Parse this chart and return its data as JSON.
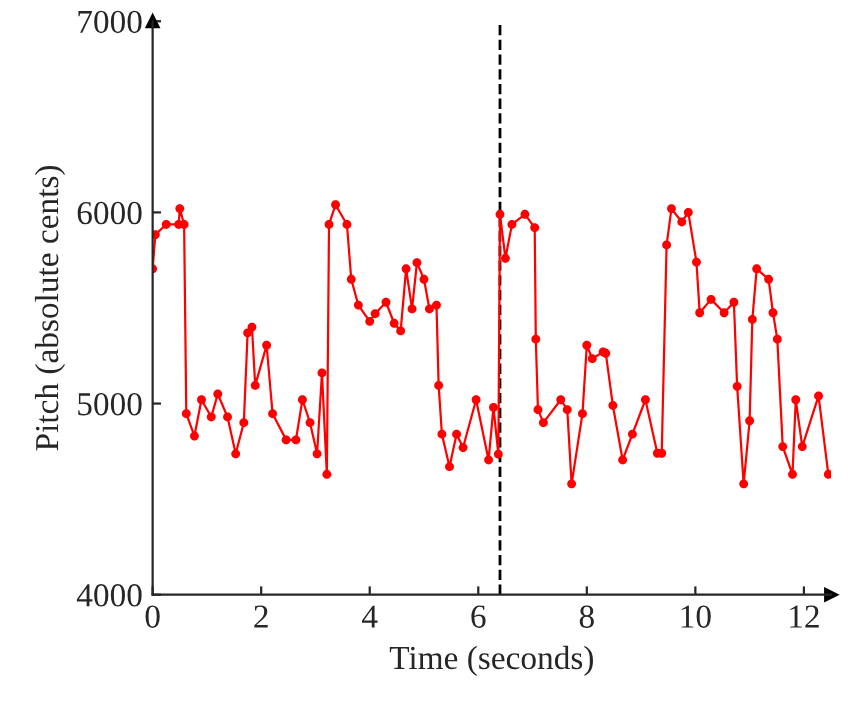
{
  "chart_data": {
    "type": "line",
    "xlabel": "Time (seconds)",
    "ylabel": "Pitch (absolute cents)",
    "xlim": [
      0,
      12.5
    ],
    "ylim": [
      4000,
      7000
    ],
    "xticks": [
      0,
      2,
      4,
      6,
      8,
      10,
      12
    ],
    "yticks": [
      4000,
      5000,
      6000,
      7000
    ],
    "marker": "circle",
    "line_style": "solid",
    "grid": false,
    "legend": false,
    "ref_lines": [
      {
        "axis": "x",
        "value": 6.4,
        "label": null,
        "color": "#000000",
        "line_style": "dashed"
      }
    ],
    "series": [
      {
        "color": "#ff0000",
        "x": [
          0,
          0.05,
          0.25,
          0.48,
          0.5,
          0.58,
          0.62,
          0.77,
          0.9,
          1.08,
          1.2,
          1.38,
          1.53,
          1.68,
          1.75,
          1.83,
          1.89,
          2.1,
          2.21,
          2.46,
          2.64,
          2.76,
          2.9,
          3.03,
          3.12,
          3.21,
          3.25,
          3.37,
          3.58,
          3.66,
          3.79,
          4.0,
          4.1,
          4.3,
          4.45,
          4.57,
          4.67,
          4.78,
          4.87,
          5.0,
          5.1,
          5.23,
          5.27,
          5.33,
          5.47,
          5.6,
          5.72,
          5.96,
          6.19,
          6.28,
          6.37,
          6.4,
          6.5,
          6.62,
          6.86,
          7.04,
          7.06,
          7.1,
          7.2,
          7.52,
          7.64,
          7.72,
          7.92,
          8.0,
          8.1,
          8.3,
          8.35,
          8.48,
          8.66,
          8.84,
          9.08,
          9.3,
          9.38,
          9.47,
          9.56,
          9.75,
          9.87,
          10.02,
          10.08,
          10.29,
          10.53,
          10.71,
          10.77,
          10.89,
          11.0,
          11.05,
          11.13,
          11.35,
          11.43,
          11.51,
          11.61,
          11.79,
          11.85,
          11.97,
          12.27,
          12.45
        ],
        "values": [
          5705,
          5884,
          5937,
          5937,
          6020,
          5937,
          4947,
          4830,
          5020,
          4930,
          5050,
          4930,
          4737,
          4900,
          5370,
          5400,
          5095,
          5305,
          4947,
          4810,
          4810,
          5020,
          4900,
          4737,
          5160,
          4630,
          5937,
          6040,
          5937,
          5650,
          5515,
          5430,
          5470,
          5530,
          5420,
          5380,
          5705,
          5495,
          5737,
          5650,
          5495,
          5515,
          5095,
          4840,
          4670,
          4840,
          4770,
          5020,
          4705,
          4980,
          4735,
          5990,
          5760,
          5937,
          5990,
          5920,
          5337,
          4968,
          4900,
          5020,
          4968,
          4580,
          4947,
          5305,
          5235,
          5270,
          5263,
          4990,
          4705,
          4840,
          5020,
          4740,
          4740,
          5830,
          6020,
          5950,
          6000,
          5740,
          5475,
          5545,
          5475,
          5530,
          5090,
          4580,
          4910,
          5440,
          5705,
          5650,
          5475,
          5337,
          4775,
          4630,
          5020,
          4775,
          5040,
          4630
        ]
      }
    ]
  }
}
